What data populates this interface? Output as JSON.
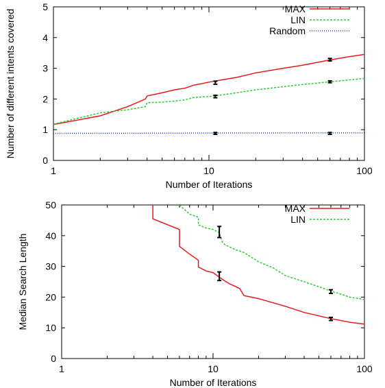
{
  "chart_data": [
    {
      "type": "line",
      "xlabel": "Number of Iterations",
      "ylabel": "Number of different intents covered",
      "xscale": "log",
      "xlim": [
        1,
        100
      ],
      "ylim": [
        0,
        5
      ],
      "xticks": [
        1,
        10,
        100
      ],
      "yticks": [
        0,
        1,
        2,
        3,
        4,
        5
      ],
      "grid": false,
      "legend_position": "top-right",
      "series": [
        {
          "name": "MAX",
          "color": "#e41a1c",
          "style": "solid",
          "x": [
            1,
            2,
            3,
            3.9,
            4,
            5,
            6,
            7,
            8,
            9,
            10,
            12,
            15,
            20,
            30,
            40,
            60,
            80,
            100
          ],
          "y": [
            1.17,
            1.45,
            1.75,
            2.0,
            2.1,
            2.2,
            2.3,
            2.35,
            2.45,
            2.5,
            2.55,
            2.62,
            2.7,
            2.85,
            3.0,
            3.1,
            3.27,
            3.38,
            3.45
          ]
        },
        {
          "name": "LIN",
          "color": "#2ecc2e",
          "style": "dashed",
          "x": [
            1,
            2,
            3,
            3.9,
            4,
            5,
            6,
            7,
            8,
            9,
            10,
            12,
            15,
            20,
            30,
            40,
            60,
            80,
            100
          ],
          "y": [
            1.18,
            1.55,
            1.65,
            1.75,
            1.88,
            1.9,
            1.93,
            1.97,
            2.05,
            2.07,
            2.08,
            2.13,
            2.2,
            2.3,
            2.4,
            2.47,
            2.56,
            2.62,
            2.67
          ]
        },
        {
          "name": "Random",
          "color": "#2233dd",
          "style": "dotted",
          "x": [
            1,
            10,
            100
          ],
          "y": [
            0.88,
            0.89,
            0.9
          ]
        }
      ],
      "error_bars": [
        {
          "series": "MAX",
          "x": 11,
          "y": 2.53,
          "err": 0.05
        },
        {
          "series": "MAX",
          "x": 60,
          "y": 3.28,
          "err": 0.04
        },
        {
          "series": "LIN",
          "x": 11,
          "y": 2.08,
          "err": 0.04
        },
        {
          "series": "LIN",
          "x": 60,
          "y": 2.56,
          "err": 0.03
        },
        {
          "series": "Random",
          "x": 11,
          "y": 0.88,
          "err": 0.03
        },
        {
          "series": "Random",
          "x": 60,
          "y": 0.88,
          "err": 0.03
        }
      ]
    },
    {
      "type": "line",
      "xlabel": "Number of Iterations",
      "ylabel": "Median Search Length",
      "xscale": "log",
      "xlim": [
        1,
        100
      ],
      "ylim": [
        0,
        50
      ],
      "xticks": [
        1,
        10,
        100
      ],
      "yticks": [
        0,
        10,
        20,
        30,
        40,
        50
      ],
      "grid": false,
      "legend_position": "top-right",
      "series": [
        {
          "name": "MAX",
          "color": "#e41a1c",
          "style": "solid",
          "x": [
            4,
            4,
            6,
            6,
            7,
            8,
            8,
            9,
            10,
            11,
            12,
            13,
            14,
            15,
            16,
            20,
            30,
            40,
            60,
            80,
            100
          ],
          "y": [
            50,
            45.5,
            42,
            36.5,
            34,
            32,
            29.8,
            28.5,
            28,
            26.5,
            25.2,
            24.2,
            23.5,
            22.8,
            20.5,
            19.5,
            17,
            15,
            13,
            11.8,
            11.2
          ]
        },
        {
          "name": "LIN",
          "color": "#2ecc2e",
          "style": "dashed",
          "x": [
            6,
            7,
            8,
            8,
            9,
            10,
            11,
            11.5,
            12,
            14,
            16,
            20,
            25,
            30,
            40,
            60,
            80,
            100
          ],
          "y": [
            50,
            47,
            46,
            43.5,
            42.5,
            42,
            41,
            38,
            37,
            35.5,
            34.5,
            31.5,
            29.5,
            27,
            25,
            22,
            20,
            19.2
          ]
        }
      ],
      "error_bars": [
        {
          "series": "LIN",
          "x": 11,
          "y": 41.2,
          "err": 1.8
        },
        {
          "series": "LIN",
          "x": 60,
          "y": 21.8,
          "err": 0.6
        },
        {
          "series": "MAX",
          "x": 11,
          "y": 26.8,
          "err": 1.4
        },
        {
          "series": "MAX",
          "x": 60,
          "y": 12.9,
          "err": 0.5
        }
      ]
    }
  ]
}
